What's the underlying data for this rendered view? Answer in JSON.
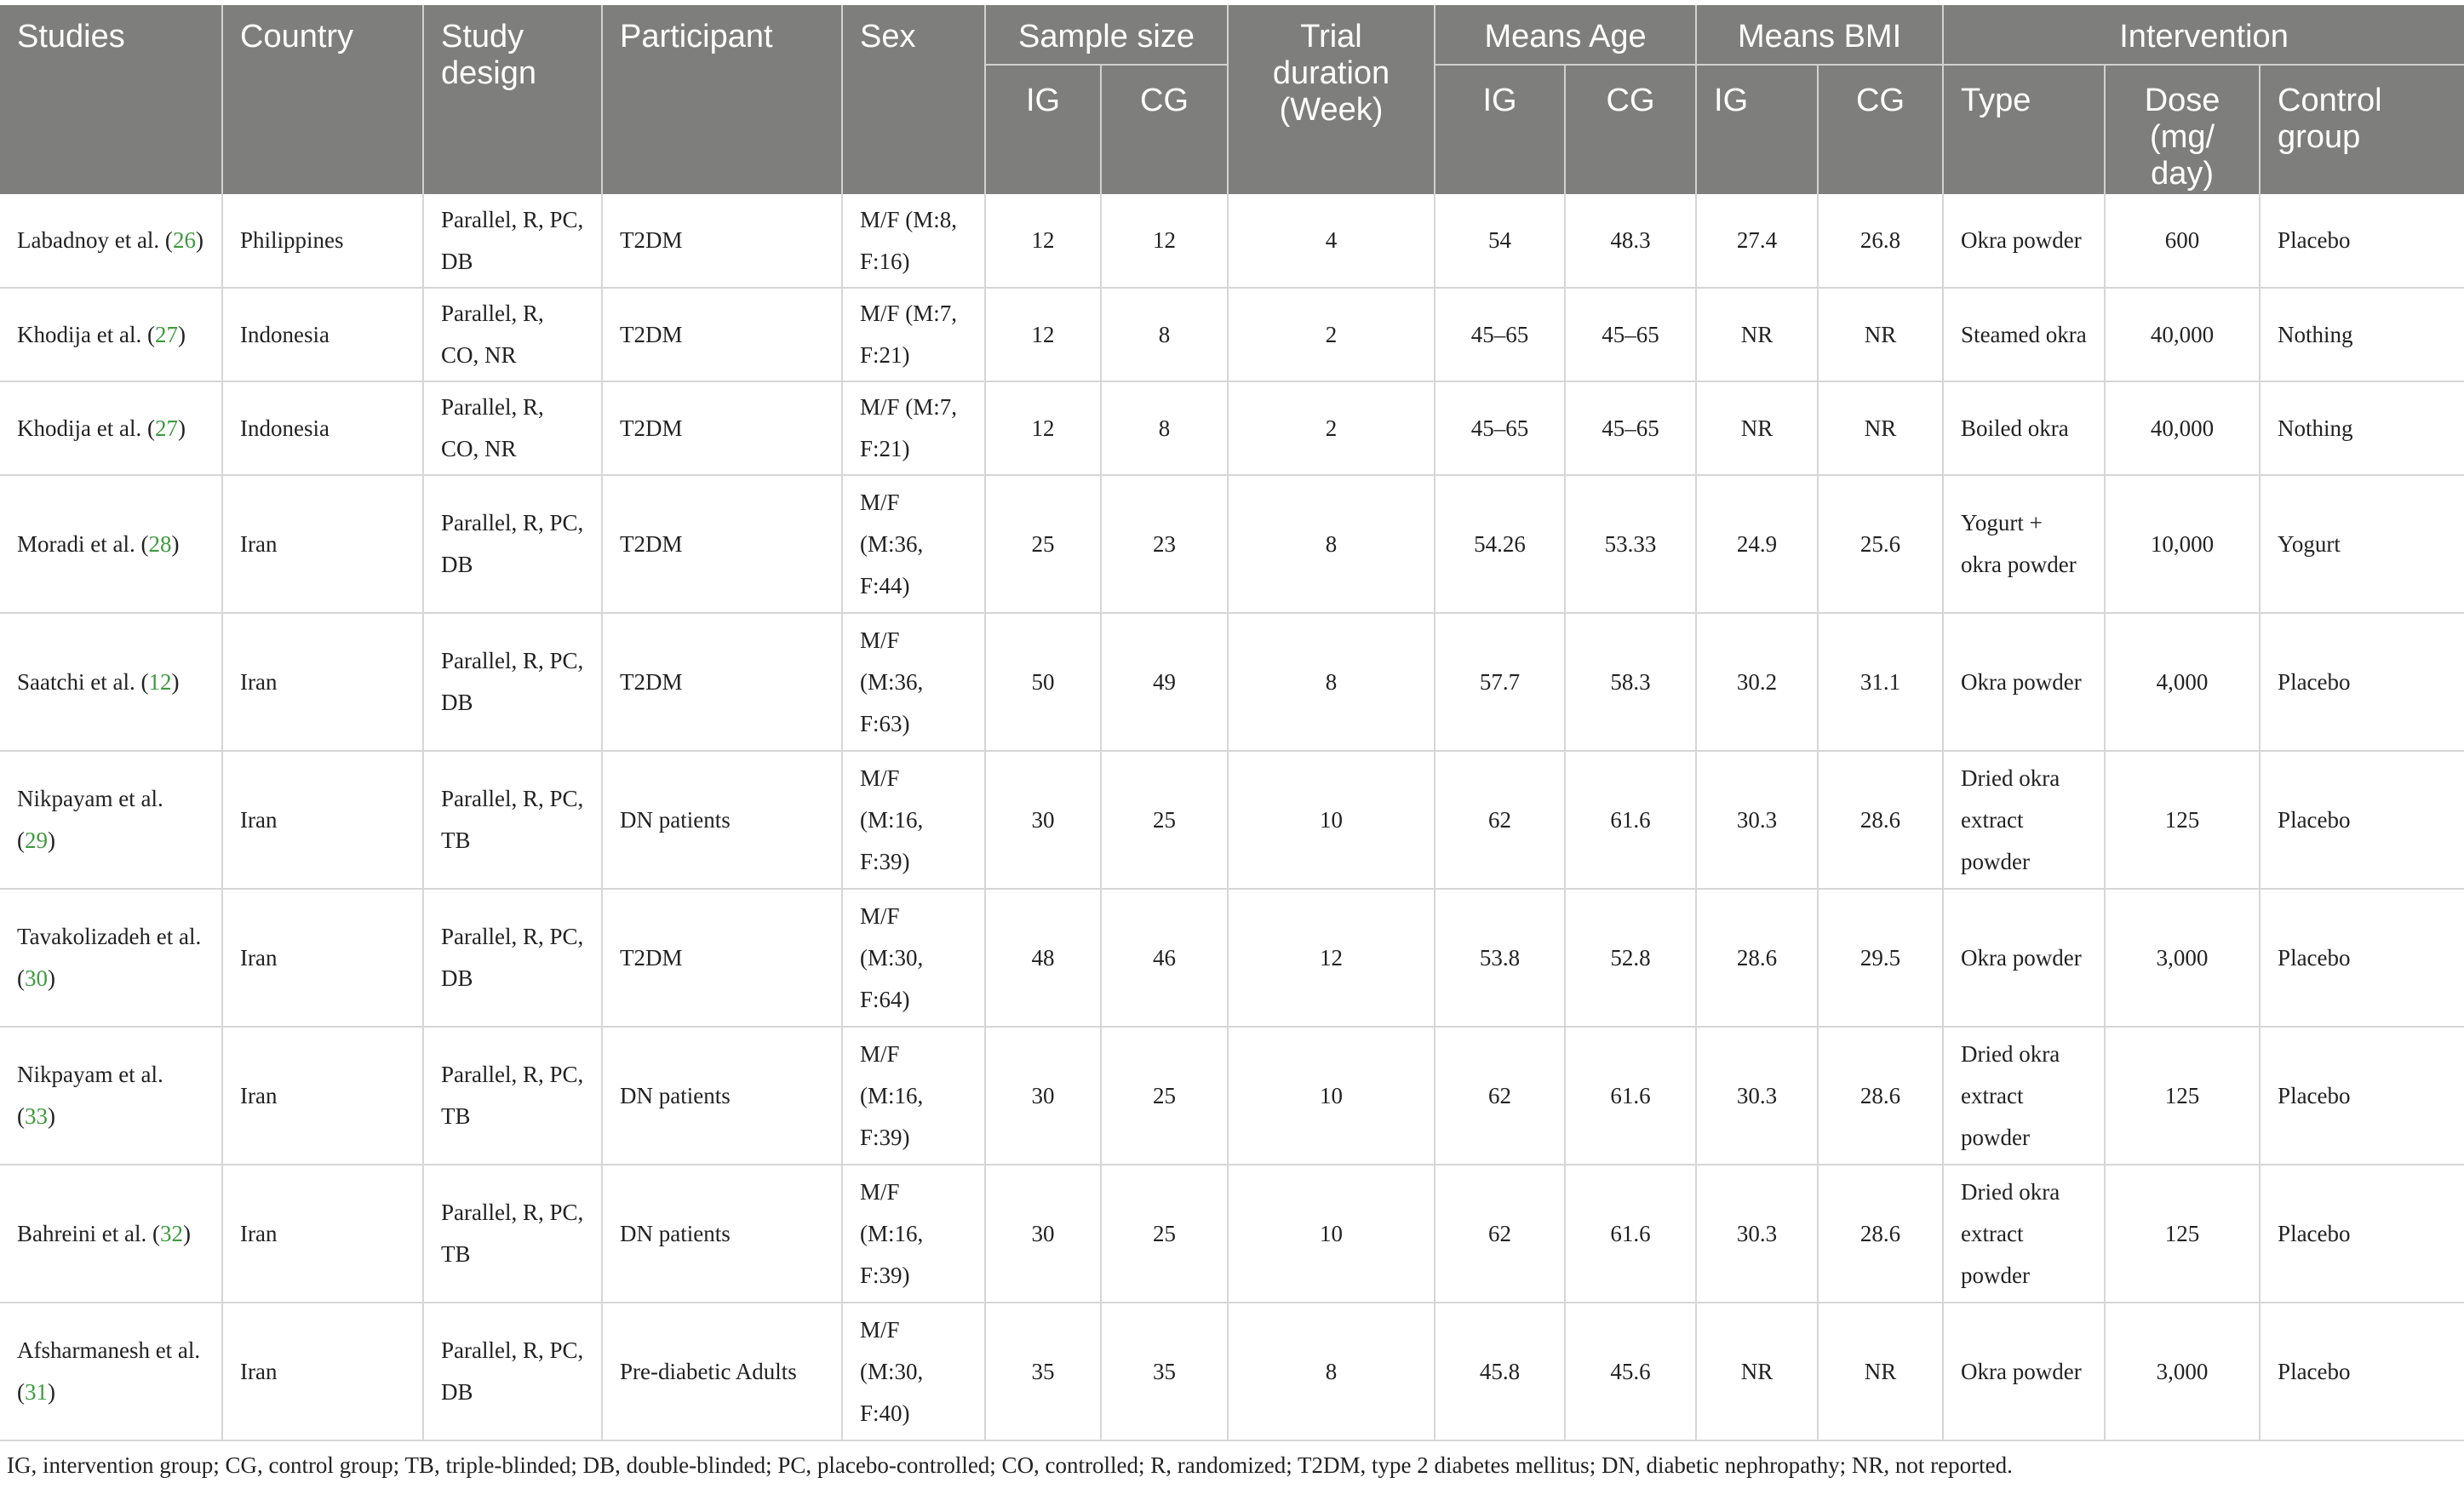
{
  "header": {
    "studies": "Studies",
    "country": "Country",
    "design": "Study design",
    "participant": "Participant",
    "sex": "Sex",
    "sample": "Sample size",
    "trial": "Trial duration (Week)",
    "age": "Means Age",
    "bmi": "Means BMI",
    "intervention": "Intervention",
    "ig": "IG",
    "cg": "CG",
    "type": "Type",
    "dose": "Dose (mg/ day)",
    "control": "Control group"
  },
  "rows": [
    {
      "study": "Labadnoy et al. (",
      "ref": "26",
      "close": ")",
      "country": "Philippines",
      "design": "Parallel, R, PC, DB",
      "participant": "T2DM",
      "sex": "M/F (M:8, F:16)",
      "n_ig": "12",
      "n_cg": "12",
      "weeks": "4",
      "age_ig": "54",
      "age_cg": "48.3",
      "bmi_ig": "27.4",
      "bmi_cg": "26.8",
      "type": "Okra powder",
      "dose": "600",
      "control": "Placebo"
    },
    {
      "study": "Khodija et al. (",
      "ref": "27",
      "close": ")",
      "country": "Indonesia",
      "design": "Parallel, R, CO, NR",
      "participant": "T2DM",
      "sex": "M/F (M:7, F:21)",
      "n_ig": "12",
      "n_cg": "8",
      "weeks": "2",
      "age_ig": "45–65",
      "age_cg": "45–65",
      "bmi_ig": "NR",
      "bmi_cg": "NR",
      "type": "Steamed okra",
      "dose": "40,000",
      "control": "Nothing"
    },
    {
      "study": "Khodija et al. (",
      "ref": "27",
      "close": ")",
      "country": "Indonesia",
      "design": "Parallel, R, CO, NR",
      "participant": "T2DM",
      "sex": "M/F (M:7, F:21)",
      "n_ig": "12",
      "n_cg": "8",
      "weeks": "2",
      "age_ig": "45–65",
      "age_cg": "45–65",
      "bmi_ig": "NR",
      "bmi_cg": "NR",
      "type": "Boiled okra",
      "dose": "40,000",
      "control": "Nothing"
    },
    {
      "study": "Moradi et al. (",
      "ref": "28",
      "close": ")",
      "country": "Iran",
      "design": "Parallel, R, PC, DB",
      "participant": "T2DM",
      "sex": "M/F (M:36, F:44)",
      "n_ig": "25",
      "n_cg": "23",
      "weeks": "8",
      "age_ig": "54.26",
      "age_cg": "53.33",
      "bmi_ig": "24.9",
      "bmi_cg": "25.6",
      "type": "Yogurt + okra powder",
      "dose": "10,000",
      "control": "Yogurt"
    },
    {
      "study": "Saatchi et al. (",
      "ref": "12",
      "close": ")",
      "country": "Iran",
      "design": "Parallel, R, PC, DB",
      "participant": "T2DM",
      "sex": "M/F (M:36, F:63)",
      "n_ig": "50",
      "n_cg": "49",
      "weeks": "8",
      "age_ig": "57.7",
      "age_cg": "58.3",
      "bmi_ig": "30.2",
      "bmi_cg": "31.1",
      "type": "Okra powder",
      "dose": "4,000",
      "control": "Placebo"
    },
    {
      "study": "Nikpayam et al. (",
      "ref": "29",
      "close": ")",
      "country": "Iran",
      "design": "Parallel, R, PC, TB",
      "participant": "DN patients",
      "sex": "M/F (M:16, F:39)",
      "n_ig": "30",
      "n_cg": "25",
      "weeks": "10",
      "age_ig": "62",
      "age_cg": "61.6",
      "bmi_ig": "30.3",
      "bmi_cg": "28.6",
      "type": "Dried okra extract powder",
      "dose": "125",
      "control": "Placebo"
    },
    {
      "study": "Tavakolizadeh et al. (",
      "ref": "30",
      "close": ")",
      "country": "Iran",
      "design": "Parallel, R, PC, DB",
      "participant": "T2DM",
      "sex": "M/F (M:30, F:64)",
      "n_ig": "48",
      "n_cg": "46",
      "weeks": "12",
      "age_ig": "53.8",
      "age_cg": "52.8",
      "bmi_ig": "28.6",
      "bmi_cg": "29.5",
      "type": "Okra powder",
      "dose": "3,000",
      "control": "Placebo"
    },
    {
      "study": "Nikpayam et al. (",
      "ref": "33",
      "close": ")",
      "country": "Iran",
      "design": "Parallel, R, PC, TB",
      "participant": "DN patients",
      "sex": "M/F (M:16, F:39)",
      "n_ig": "30",
      "n_cg": "25",
      "weeks": "10",
      "age_ig": "62",
      "age_cg": "61.6",
      "bmi_ig": "30.3",
      "bmi_cg": "28.6",
      "type": "Dried okra extract powder",
      "dose": "125",
      "control": "Placebo"
    },
    {
      "study": "Bahreini et al. (",
      "ref": "32",
      "close": ")",
      "country": "Iran",
      "design": "Parallel, R, PC, TB",
      "participant": "DN patients",
      "sex": "M/F (M:16, F:39)",
      "n_ig": "30",
      "n_cg": "25",
      "weeks": "10",
      "age_ig": "62",
      "age_cg": "61.6",
      "bmi_ig": "30.3",
      "bmi_cg": "28.6",
      "type": "Dried okra extract powder",
      "dose": "125",
      "control": "Placebo"
    },
    {
      "study": "Afsharmanesh et al. (",
      "ref": "31",
      "close": ")",
      "country": "Iran",
      "design": "Parallel, R, PC, DB",
      "participant": "Pre-diabetic Adults",
      "sex": "M/F (M:30, F:40)",
      "n_ig": "35",
      "n_cg": "35",
      "weeks": "8",
      "age_ig": "45.8",
      "age_cg": "45.6",
      "bmi_ig": "NR",
      "bmi_cg": "NR",
      "type": "Okra powder",
      "dose": "3,000",
      "control": "Placebo"
    }
  ],
  "footnote": "IG, intervention group; CG, control group; TB, triple-blinded; DB, double-blinded; PC, placebo-controlled; CO, controlled; R, randomized; T2DM, type 2 diabetes mellitus; DN, diabetic nephropathy; NR, not reported.",
  "colors": {
    "header_bg": "#7e7f7d",
    "header_text": "#ffffff",
    "ref_link": "#3f9a3f"
  }
}
